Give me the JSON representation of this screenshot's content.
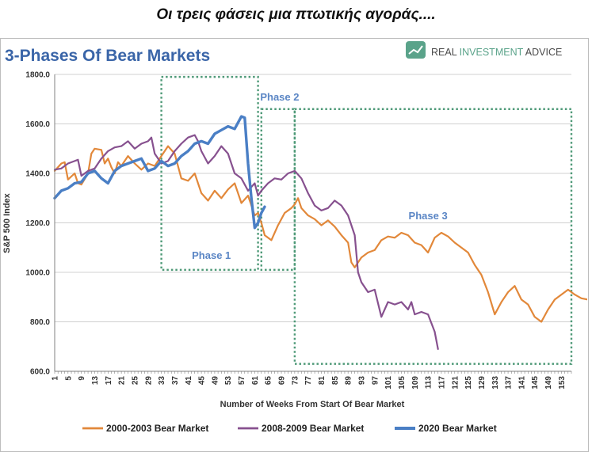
{
  "header": {
    "caption": "Οι τρεις φάσεις μια πτωτικής αγοράς...."
  },
  "brand": {
    "name_part1": "REAL ",
    "name_part2": "INVESTMENT",
    "name_part3": " ADVICE",
    "logo_icon": "chart-icon",
    "color_green": "#5aa38a",
    "color_gray": "#4a4a4a"
  },
  "colors": {
    "title": "#3a65a8",
    "phase_label": "#5b86c5",
    "phase_box": "#4f9a78",
    "grid": "#d0d0d0",
    "axis": "#808080"
  },
  "chart_data": {
    "type": "line",
    "title": "3-Phases Of Bear Markets",
    "xlabel": "Number of Weeks From Start Of Bear Market",
    "ylabel": "S&P 500 Index",
    "xlim": [
      1,
      156
    ],
    "ylim": [
      600,
      1800
    ],
    "yticks": [
      600,
      800,
      1000,
      1200,
      1400,
      1600,
      1800
    ],
    "ytick_labels": [
      "600.0",
      "800.0",
      "1000.0",
      "1200.0",
      "1400.0",
      "1600.0",
      "1800.0"
    ],
    "xticks": [
      1,
      5,
      9,
      13,
      17,
      21,
      25,
      29,
      33,
      37,
      41,
      45,
      49,
      53,
      57,
      61,
      65,
      69,
      73,
      77,
      81,
      85,
      89,
      93,
      97,
      101,
      105,
      109,
      113,
      117,
      121,
      125,
      129,
      133,
      137,
      141,
      145,
      149,
      153
    ],
    "grid": "horizontal",
    "legend_position": "bottom",
    "series": [
      {
        "name": "2000-2003 Bear Market",
        "color": "#e2883a",
        "width": 2.2,
        "points": [
          [
            1,
            1410
          ],
          [
            3,
            1440
          ],
          [
            4,
            1445
          ],
          [
            5,
            1375
          ],
          [
            7,
            1400
          ],
          [
            8,
            1360
          ],
          [
            9,
            1355
          ],
          [
            11,
            1400
          ],
          [
            12,
            1480
          ],
          [
            13,
            1500
          ],
          [
            15,
            1495
          ],
          [
            16,
            1440
          ],
          [
            17,
            1460
          ],
          [
            18,
            1425
          ],
          [
            19,
            1400
          ],
          [
            20,
            1445
          ],
          [
            21,
            1430
          ],
          [
            23,
            1470
          ],
          [
            25,
            1440
          ],
          [
            27,
            1415
          ],
          [
            29,
            1440
          ],
          [
            31,
            1430
          ],
          [
            33,
            1470
          ],
          [
            35,
            1510
          ],
          [
            37,
            1480
          ],
          [
            39,
            1380
          ],
          [
            41,
            1370
          ],
          [
            43,
            1400
          ],
          [
            45,
            1320
          ],
          [
            47,
            1290
          ],
          [
            49,
            1330
          ],
          [
            51,
            1300
          ],
          [
            53,
            1335
          ],
          [
            55,
            1360
          ],
          [
            57,
            1280
          ],
          [
            59,
            1310
          ],
          [
            61,
            1230
          ],
          [
            62,
            1240
          ],
          [
            63,
            1200
          ],
          [
            64,
            1150
          ],
          [
            66,
            1130
          ],
          [
            68,
            1190
          ],
          [
            70,
            1240
          ],
          [
            72,
            1260
          ],
          [
            73,
            1275
          ],
          [
            74,
            1300
          ],
          [
            75,
            1260
          ],
          [
            77,
            1230
          ],
          [
            79,
            1215
          ],
          [
            81,
            1190
          ],
          [
            83,
            1210
          ],
          [
            85,
            1185
          ],
          [
            87,
            1150
          ],
          [
            89,
            1120
          ],
          [
            90,
            1040
          ],
          [
            91,
            1020
          ],
          [
            93,
            1060
          ],
          [
            95,
            1080
          ],
          [
            97,
            1090
          ],
          [
            99,
            1130
          ],
          [
            101,
            1145
          ],
          [
            103,
            1140
          ],
          [
            105,
            1160
          ],
          [
            107,
            1150
          ],
          [
            109,
            1120
          ],
          [
            111,
            1110
          ],
          [
            113,
            1080
          ],
          [
            115,
            1140
          ],
          [
            117,
            1160
          ],
          [
            119,
            1145
          ],
          [
            121,
            1120
          ],
          [
            123,
            1100
          ],
          [
            125,
            1080
          ],
          [
            127,
            1030
          ],
          [
            129,
            990
          ],
          [
            131,
            920
          ],
          [
            133,
            830
          ],
          [
            135,
            880
          ],
          [
            137,
            920
          ],
          [
            139,
            945
          ],
          [
            141,
            890
          ],
          [
            143,
            870
          ],
          [
            145,
            820
          ],
          [
            147,
            800
          ],
          [
            149,
            850
          ],
          [
            151,
            890
          ],
          [
            153,
            910
          ],
          [
            155,
            930
          ],
          [
            157,
            910
          ],
          [
            159,
            895
          ],
          [
            161,
            890
          ]
        ]
      },
      {
        "name": "2008-2009 Bear Market",
        "color": "#87518f",
        "width": 2.2,
        "points": [
          [
            1,
            1415
          ],
          [
            3,
            1420
          ],
          [
            5,
            1440
          ],
          [
            7,
            1450
          ],
          [
            8,
            1455
          ],
          [
            9,
            1390
          ],
          [
            11,
            1410
          ],
          [
            13,
            1420
          ],
          [
            15,
            1460
          ],
          [
            17,
            1490
          ],
          [
            19,
            1505
          ],
          [
            21,
            1510
          ],
          [
            23,
            1530
          ],
          [
            25,
            1500
          ],
          [
            27,
            1520
          ],
          [
            29,
            1530
          ],
          [
            30,
            1545
          ],
          [
            31,
            1480
          ],
          [
            33,
            1440
          ],
          [
            35,
            1450
          ],
          [
            37,
            1490
          ],
          [
            39,
            1520
          ],
          [
            41,
            1545
          ],
          [
            43,
            1555
          ],
          [
            44,
            1530
          ],
          [
            45,
            1490
          ],
          [
            47,
            1440
          ],
          [
            49,
            1470
          ],
          [
            51,
            1510
          ],
          [
            53,
            1480
          ],
          [
            55,
            1400
          ],
          [
            57,
            1380
          ],
          [
            59,
            1330
          ],
          [
            61,
            1360
          ],
          [
            62,
            1310
          ],
          [
            63,
            1330
          ],
          [
            65,
            1360
          ],
          [
            67,
            1380
          ],
          [
            69,
            1375
          ],
          [
            71,
            1400
          ],
          [
            73,
            1410
          ],
          [
            75,
            1380
          ],
          [
            77,
            1320
          ],
          [
            79,
            1270
          ],
          [
            81,
            1250
          ],
          [
            83,
            1260
          ],
          [
            85,
            1290
          ],
          [
            87,
            1270
          ],
          [
            89,
            1230
          ],
          [
            91,
            1150
          ],
          [
            92,
            1000
          ],
          [
            93,
            960
          ],
          [
            95,
            920
          ],
          [
            97,
            930
          ],
          [
            99,
            820
          ],
          [
            101,
            880
          ],
          [
            103,
            870
          ],
          [
            105,
            880
          ],
          [
            107,
            850
          ],
          [
            108,
            880
          ],
          [
            109,
            830
          ],
          [
            111,
            840
          ],
          [
            113,
            830
          ],
          [
            115,
            760
          ],
          [
            116,
            690
          ]
        ]
      },
      {
        "name": "2020 Bear Market",
        "color": "#4a7fc5",
        "width": 3.4,
        "points": [
          [
            1,
            1300
          ],
          [
            3,
            1330
          ],
          [
            5,
            1340
          ],
          [
            7,
            1360
          ],
          [
            9,
            1365
          ],
          [
            11,
            1400
          ],
          [
            13,
            1410
          ],
          [
            15,
            1380
          ],
          [
            17,
            1360
          ],
          [
            19,
            1410
          ],
          [
            21,
            1430
          ],
          [
            23,
            1440
          ],
          [
            25,
            1450
          ],
          [
            27,
            1460
          ],
          [
            29,
            1410
          ],
          [
            31,
            1420
          ],
          [
            33,
            1450
          ],
          [
            35,
            1430
          ],
          [
            37,
            1440
          ],
          [
            39,
            1470
          ],
          [
            41,
            1490
          ],
          [
            43,
            1520
          ],
          [
            45,
            1530
          ],
          [
            47,
            1520
          ],
          [
            49,
            1560
          ],
          [
            51,
            1575
          ],
          [
            53,
            1590
          ],
          [
            55,
            1580
          ],
          [
            57,
            1630
          ],
          [
            58,
            1625
          ],
          [
            59,
            1440
          ],
          [
            60,
            1300
          ],
          [
            61,
            1180
          ],
          [
            62,
            1200
          ],
          [
            63,
            1240
          ],
          [
            64,
            1265
          ]
        ]
      }
    ],
    "annotations": [
      {
        "label": "Phase 1",
        "box_x": [
          33,
          62
        ],
        "box_y": [
          1010,
          1790
        ],
        "label_at": [
          48,
          1055
        ]
      },
      {
        "label": "Phase 2",
        "box_x": [
          63,
          73
        ],
        "box_y": [
          1010,
          1660
        ],
        "label_at": [
          68.5,
          1695
        ]
      },
      {
        "label": "Phase 3",
        "box_x": [
          73,
          156
        ],
        "box_y": [
          630,
          1660
        ],
        "label_at": [
          113,
          1215
        ]
      }
    ]
  }
}
